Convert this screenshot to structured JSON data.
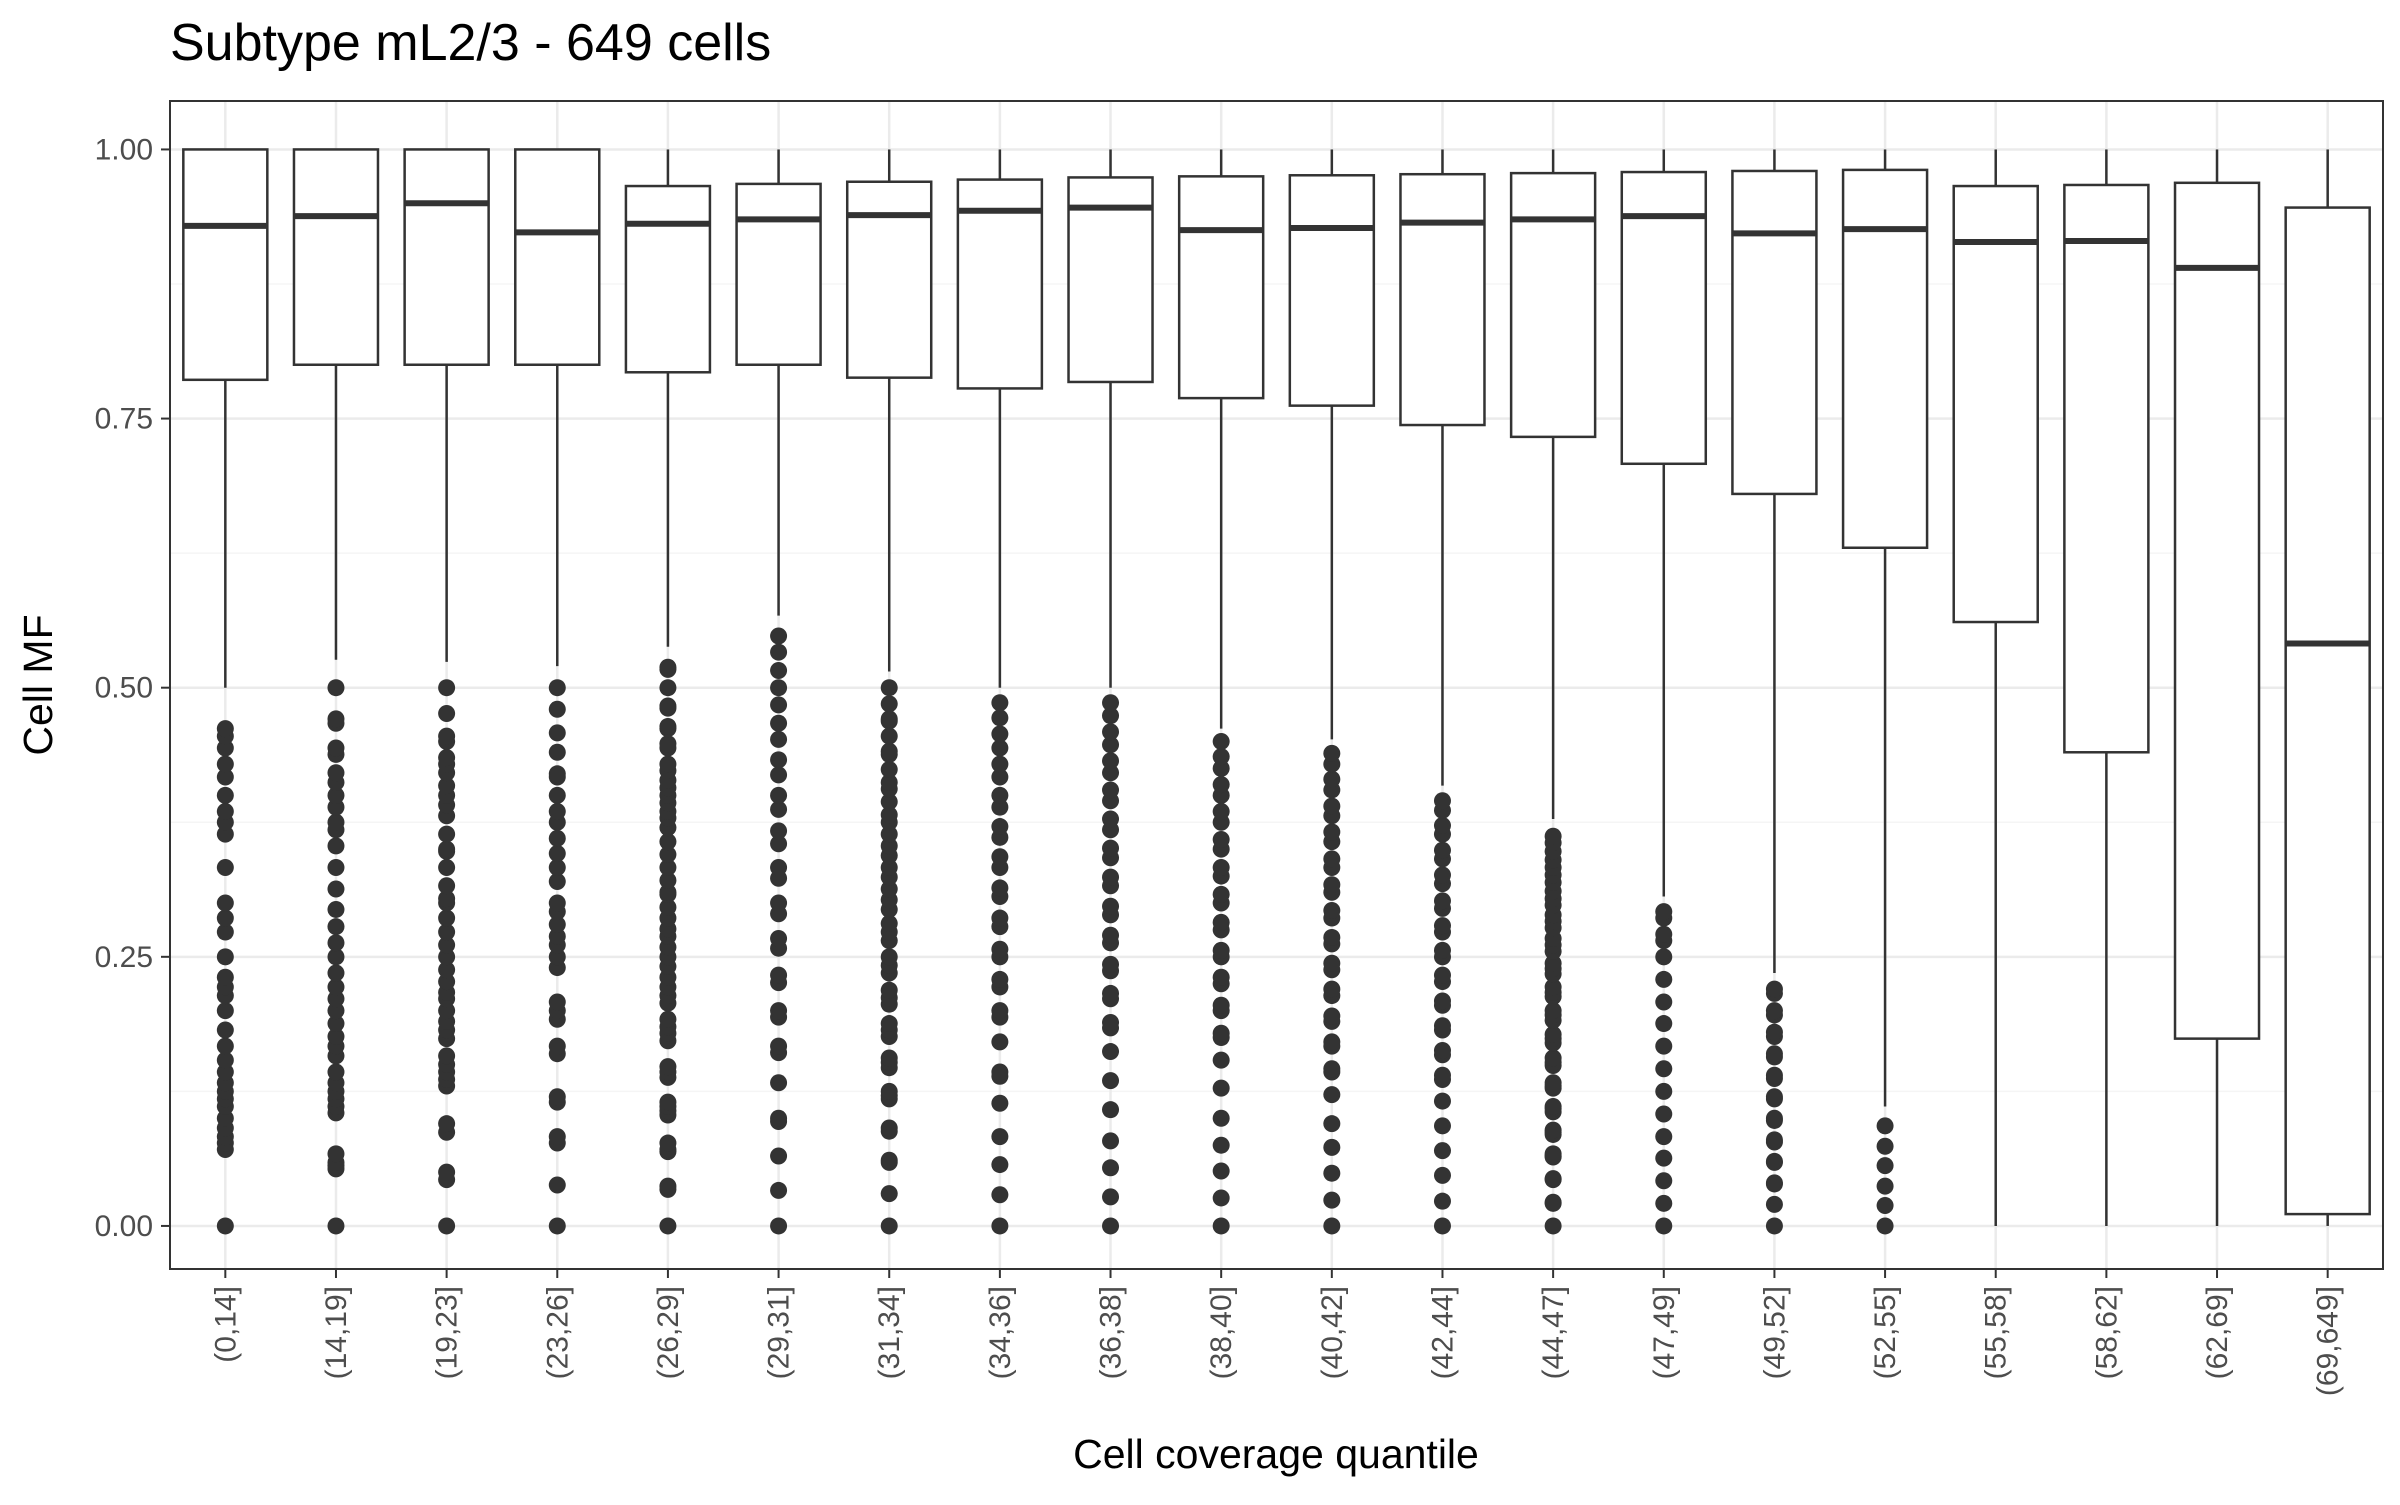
{
  "chart_data": {
    "type": "boxplot",
    "title": "Subtype mL2/3 - 649 cells",
    "xlabel": "Cell coverage quantile",
    "ylabel": "Cell MF",
    "ylim": [
      -0.04,
      1.045
    ],
    "yticks": [
      0.0,
      0.25,
      0.5,
      0.75,
      1.0
    ],
    "ytick_labels": [
      "0.00",
      "0.25",
      "0.50",
      "0.75",
      "1.00"
    ],
    "grid": true,
    "theme": "bw",
    "colors": {
      "box": "#333333",
      "grid_major": "#ebebeb",
      "grid_minor": "#f5f5f5",
      "panel_border": "#333333",
      "point": "#333333"
    },
    "categories": [
      "(0,14]",
      "(14,19]",
      "(19,23]",
      "(23,26]",
      "(26,29]",
      "(29,31]",
      "(31,34]",
      "(34,36]",
      "(36,38]",
      "(38,40]",
      "(40,42]",
      "(42,44]",
      "(44,47]",
      "(47,49]",
      "(49,52]",
      "(52,55]",
      "(55,58]",
      "(58,62]",
      "(62,69]",
      "(69,649]"
    ],
    "boxes": [
      {
        "category": "(0,14]",
        "whisker_low": 0.5,
        "q1": 0.786,
        "median": 0.929,
        "q3": 1.0,
        "whisker_high": 1.0,
        "outliers": [
          0.0,
          0.071,
          0.077,
          0.083,
          0.091,
          0.1,
          0.111,
          0.118,
          0.125,
          0.133,
          0.143,
          0.154,
          0.167,
          0.182,
          0.2,
          0.214,
          0.222,
          0.231,
          0.25,
          0.273,
          0.286,
          0.3,
          0.333,
          0.364,
          0.375,
          0.385,
          0.4,
          0.417,
          0.429,
          0.444,
          0.455,
          0.462
        ]
      },
      {
        "category": "(14,19]",
        "whisker_low": 0.526,
        "q1": 0.8,
        "median": 0.938,
        "q3": 1.0,
        "whisker_high": 1.0,
        "outliers": [
          0.0,
          0.053,
          0.056,
          0.059,
          0.067,
          0.105,
          0.111,
          0.118,
          0.125,
          0.133,
          0.143,
          0.158,
          0.167,
          0.176,
          0.188,
          0.2,
          0.211,
          0.222,
          0.235,
          0.25,
          0.263,
          0.278,
          0.294,
          0.313,
          0.333,
          0.353,
          0.368,
          0.375,
          0.389,
          0.4,
          0.412,
          0.421,
          0.438,
          0.444,
          0.467,
          0.471,
          0.5
        ]
      },
      {
        "category": "(19,23]",
        "whisker_low": 0.524,
        "q1": 0.8,
        "median": 0.95,
        "q3": 1.0,
        "whisker_high": 1.0,
        "outliers": [
          0.0,
          0.043,
          0.05,
          0.087,
          0.095,
          0.13,
          0.136,
          0.143,
          0.15,
          0.158,
          0.174,
          0.182,
          0.19,
          0.2,
          0.211,
          0.217,
          0.227,
          0.238,
          0.25,
          0.261,
          0.273,
          0.286,
          0.3,
          0.304,
          0.316,
          0.333,
          0.348,
          0.35,
          0.364,
          0.381,
          0.391,
          0.4,
          0.409,
          0.421,
          0.429,
          0.435,
          0.45,
          0.455,
          0.476,
          0.5
        ]
      },
      {
        "category": "(23,26]",
        "whisker_low": 0.52,
        "q1": 0.8,
        "median": 0.923,
        "q3": 1.0,
        "whisker_high": 1.0,
        "outliers": [
          0.0,
          0.038,
          0.077,
          0.083,
          0.115,
          0.12,
          0.16,
          0.167,
          0.192,
          0.2,
          0.208,
          0.24,
          0.25,
          0.261,
          0.269,
          0.28,
          0.292,
          0.3,
          0.32,
          0.333,
          0.346,
          0.36,
          0.375,
          0.385,
          0.4,
          0.417,
          0.42,
          0.44,
          0.458,
          0.48,
          0.5
        ]
      },
      {
        "category": "(26,29]",
        "whisker_low": 0.538,
        "q1": 0.793,
        "median": 0.931,
        "q3": 0.966,
        "whisker_high": 1.0,
        "outliers": [
          0.0,
          0.034,
          0.037,
          0.069,
          0.071,
          0.077,
          0.103,
          0.107,
          0.111,
          0.115,
          0.138,
          0.143,
          0.148,
          0.172,
          0.179,
          0.185,
          0.192,
          0.207,
          0.214,
          0.222,
          0.231,
          0.241,
          0.25,
          0.259,
          0.269,
          0.276,
          0.286,
          0.296,
          0.308,
          0.31,
          0.321,
          0.333,
          0.345,
          0.357,
          0.37,
          0.379,
          0.385,
          0.393,
          0.4,
          0.407,
          0.414,
          0.423,
          0.429,
          0.444,
          0.448,
          0.462,
          0.464,
          0.481,
          0.483,
          0.5,
          0.517,
          0.519
        ]
      },
      {
        "category": "(29,31]",
        "whisker_low": 0.567,
        "q1": 0.8,
        "median": 0.935,
        "q3": 0.968,
        "whisker_high": 1.0,
        "outliers": [
          0.0,
          0.033,
          0.065,
          0.097,
          0.1,
          0.133,
          0.161,
          0.167,
          0.194,
          0.2,
          0.226,
          0.233,
          0.258,
          0.267,
          0.29,
          0.3,
          0.323,
          0.333,
          0.355,
          0.367,
          0.387,
          0.4,
          0.419,
          0.433,
          0.452,
          0.467,
          0.484,
          0.5,
          0.516,
          0.533,
          0.548
        ]
      },
      {
        "category": "(31,34]",
        "whisker_low": 0.515,
        "q1": 0.788,
        "median": 0.939,
        "q3": 0.97,
        "whisker_high": 1.0,
        "outliers": [
          0.0,
          0.03,
          0.059,
          0.061,
          0.088,
          0.091,
          0.118,
          0.121,
          0.125,
          0.147,
          0.152,
          0.156,
          0.176,
          0.182,
          0.188,
          0.206,
          0.212,
          0.219,
          0.235,
          0.242,
          0.25,
          0.265,
          0.273,
          0.281,
          0.294,
          0.303,
          0.313,
          0.324,
          0.333,
          0.344,
          0.353,
          0.364,
          0.375,
          0.382,
          0.394,
          0.406,
          0.412,
          0.424,
          0.438,
          0.441,
          0.455,
          0.469,
          0.471,
          0.485,
          0.5
        ]
      },
      {
        "category": "(34,36]",
        "whisker_low": 0.5,
        "q1": 0.778,
        "median": 0.943,
        "q3": 0.972,
        "whisker_high": 1.0,
        "outliers": [
          0.0,
          0.029,
          0.057,
          0.083,
          0.114,
          0.139,
          0.143,
          0.171,
          0.194,
          0.2,
          0.222,
          0.229,
          0.25,
          0.257,
          0.278,
          0.286,
          0.306,
          0.314,
          0.333,
          0.343,
          0.361,
          0.371,
          0.389,
          0.4,
          0.417,
          0.429,
          0.444,
          0.457,
          0.472,
          0.486
        ]
      },
      {
        "category": "(36,38]",
        "whisker_low": 0.5,
        "q1": 0.784,
        "median": 0.946,
        "q3": 0.974,
        "whisker_high": 1.0,
        "outliers": [
          0.0,
          0.027,
          0.054,
          0.079,
          0.108,
          0.135,
          0.162,
          0.184,
          0.189,
          0.211,
          0.216,
          0.237,
          0.243,
          0.263,
          0.27,
          0.289,
          0.297,
          0.316,
          0.324,
          0.342,
          0.351,
          0.368,
          0.378,
          0.395,
          0.405,
          0.421,
          0.432,
          0.447,
          0.459,
          0.474,
          0.486
        ]
      },
      {
        "category": "(38,40]",
        "whisker_low": 0.462,
        "q1": 0.769,
        "median": 0.925,
        "q3": 0.975,
        "whisker_high": 1.0,
        "outliers": [
          0.0,
          0.026,
          0.051,
          0.075,
          0.1,
          0.128,
          0.154,
          0.175,
          0.179,
          0.2,
          0.205,
          0.225,
          0.231,
          0.25,
          0.256,
          0.275,
          0.282,
          0.3,
          0.308,
          0.325,
          0.333,
          0.35,
          0.359,
          0.375,
          0.385,
          0.4,
          0.41,
          0.425,
          0.436,
          0.45
        ]
      },
      {
        "category": "(40,42]",
        "whisker_low": 0.452,
        "q1": 0.762,
        "median": 0.927,
        "q3": 0.976,
        "whisker_high": 1.0,
        "outliers": [
          0.0,
          0.024,
          0.049,
          0.073,
          0.095,
          0.122,
          0.143,
          0.146,
          0.167,
          0.171,
          0.19,
          0.195,
          0.214,
          0.22,
          0.238,
          0.244,
          0.262,
          0.268,
          0.286,
          0.293,
          0.31,
          0.317,
          0.333,
          0.341,
          0.357,
          0.366,
          0.381,
          0.39,
          0.405,
          0.415,
          0.429,
          0.439
        ]
      },
      {
        "category": "(42,44]",
        "whisker_low": 0.409,
        "q1": 0.744,
        "median": 0.932,
        "q3": 0.977,
        "whisker_high": 1.0,
        "outliers": [
          0.0,
          0.023,
          0.047,
          0.07,
          0.093,
          0.116,
          0.136,
          0.14,
          0.159,
          0.163,
          0.182,
          0.186,
          0.205,
          0.209,
          0.227,
          0.233,
          0.25,
          0.256,
          0.273,
          0.279,
          0.295,
          0.302,
          0.318,
          0.326,
          0.341,
          0.349,
          0.364,
          0.372,
          0.386,
          0.395
        ]
      },
      {
        "category": "(44,47]",
        "whisker_low": 0.378,
        "q1": 0.733,
        "median": 0.935,
        "q3": 0.978,
        "whisker_high": 1.0,
        "outliers": [
          0.0,
          0.021,
          0.022,
          0.043,
          0.044,
          0.064,
          0.065,
          0.067,
          0.085,
          0.087,
          0.089,
          0.106,
          0.109,
          0.111,
          0.128,
          0.13,
          0.133,
          0.149,
          0.152,
          0.156,
          0.17,
          0.174,
          0.178,
          0.191,
          0.196,
          0.2,
          0.213,
          0.217,
          0.222,
          0.234,
          0.239,
          0.244,
          0.255,
          0.261,
          0.267,
          0.277,
          0.283,
          0.289,
          0.298,
          0.304,
          0.311,
          0.319,
          0.326,
          0.333,
          0.34,
          0.348,
          0.356,
          0.362
        ]
      },
      {
        "category": "(47,49]",
        "whisker_low": 0.306,
        "q1": 0.708,
        "median": 0.938,
        "q3": 0.979,
        "whisker_high": 1.0,
        "outliers": [
          0.0,
          0.021,
          0.042,
          0.063,
          0.083,
          0.104,
          0.125,
          0.146,
          0.167,
          0.188,
          0.208,
          0.229,
          0.25,
          0.265,
          0.271,
          0.286,
          0.292
        ]
      },
      {
        "category": "(49,52]",
        "whisker_low": 0.235,
        "q1": 0.68,
        "median": 0.922,
        "q3": 0.98,
        "whisker_high": 1.0,
        "outliers": [
          0.0,
          0.02,
          0.039,
          0.04,
          0.059,
          0.06,
          0.078,
          0.08,
          0.098,
          0.1,
          0.118,
          0.12,
          0.137,
          0.14,
          0.157,
          0.16,
          0.176,
          0.18,
          0.196,
          0.2,
          0.216,
          0.22
        ]
      },
      {
        "category": "(52,55]",
        "whisker_low": 0.111,
        "q1": 0.63,
        "median": 0.926,
        "q3": 0.981,
        "whisker_high": 1.0,
        "outliers": [
          0.0,
          0.019,
          0.037,
          0.056,
          0.074,
          0.093
        ]
      },
      {
        "category": "(55,58]",
        "whisker_low": 0.0,
        "q1": 0.561,
        "median": 0.914,
        "q3": 0.966,
        "whisker_high": 1.0,
        "outliers": []
      },
      {
        "category": "(58,62]",
        "whisker_low": 0.0,
        "q1": 0.44,
        "median": 0.915,
        "q3": 0.967,
        "whisker_high": 1.0,
        "outliers": []
      },
      {
        "category": "(62,69]",
        "whisker_low": 0.0,
        "q1": 0.174,
        "median": 0.89,
        "q3": 0.969,
        "whisker_high": 1.0,
        "outliers": []
      },
      {
        "category": "(69,649]",
        "whisker_low": 0.0,
        "q1": 0.011,
        "median": 0.541,
        "q3": 0.946,
        "whisker_high": 1.0,
        "outliers": []
      }
    ]
  }
}
